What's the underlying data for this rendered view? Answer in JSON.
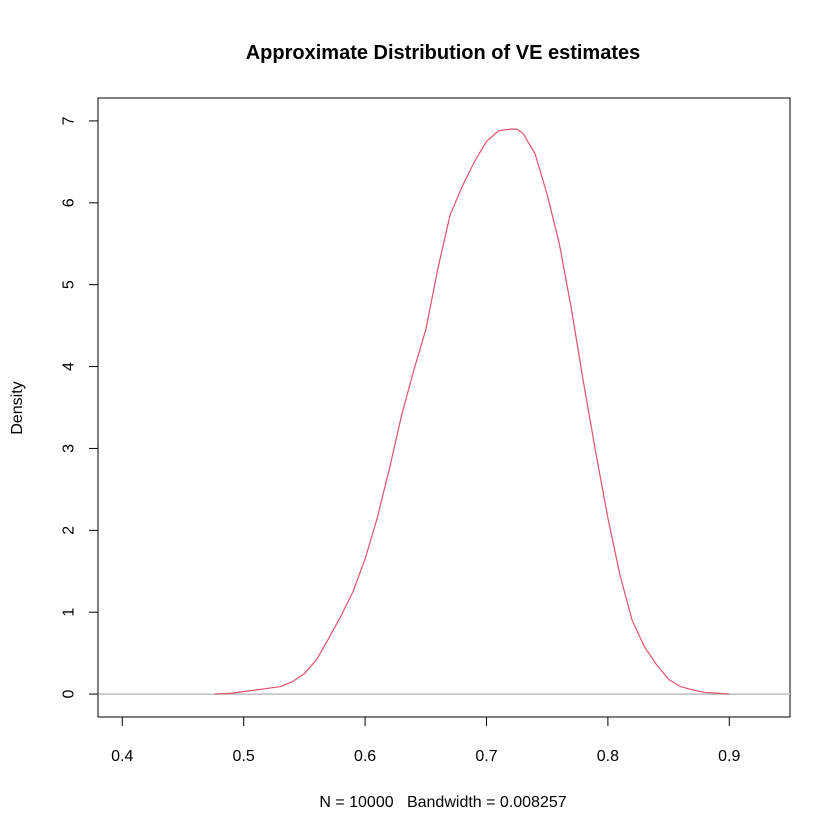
{
  "chart_data": {
    "type": "line",
    "title": "Approximate Distribution of VE estimates",
    "xlabel": "N = 10000   Bandwidth = 0.008257",
    "ylabel": "Density",
    "xlim": [
      0.38,
      0.95
    ],
    "ylim": [
      -0.28,
      7.28
    ],
    "x_ticks": [
      0.4,
      0.5,
      0.6,
      0.7,
      0.8,
      0.9
    ],
    "x_tick_labels": [
      "0.4",
      "0.5",
      "0.6",
      "0.7",
      "0.8",
      "0.9"
    ],
    "y_ticks": [
      0,
      1,
      2,
      3,
      4,
      5,
      6,
      7
    ],
    "y_tick_labels": [
      "0",
      "1",
      "2",
      "3",
      "4",
      "5",
      "6",
      "7"
    ],
    "grid": false,
    "baseline_y": 0,
    "series": [
      {
        "color": "#DF536B",
        "x": [
          0.476,
          0.49,
          0.5,
          0.51,
          0.52,
          0.53,
          0.54,
          0.55,
          0.56,
          0.57,
          0.58,
          0.59,
          0.6,
          0.61,
          0.62,
          0.63,
          0.64,
          0.65,
          0.66,
          0.67,
          0.68,
          0.69,
          0.7,
          0.71,
          0.72,
          0.725,
          0.73,
          0.74,
          0.75,
          0.76,
          0.77,
          0.78,
          0.79,
          0.8,
          0.81,
          0.82,
          0.83,
          0.84,
          0.85,
          0.86,
          0.87,
          0.88,
          0.89,
          0.9
        ],
        "y": [
          0.0,
          0.01,
          0.03,
          0.05,
          0.07,
          0.09,
          0.15,
          0.25,
          0.42,
          0.68,
          0.95,
          1.25,
          1.65,
          2.15,
          2.75,
          3.4,
          3.95,
          4.45,
          5.2,
          5.85,
          6.2,
          6.5,
          6.75,
          6.88,
          6.9,
          6.9,
          6.85,
          6.6,
          6.1,
          5.5,
          4.7,
          3.8,
          2.95,
          2.15,
          1.45,
          0.9,
          0.58,
          0.36,
          0.18,
          0.09,
          0.05,
          0.02,
          0.01,
          0.0
        ]
      }
    ]
  }
}
